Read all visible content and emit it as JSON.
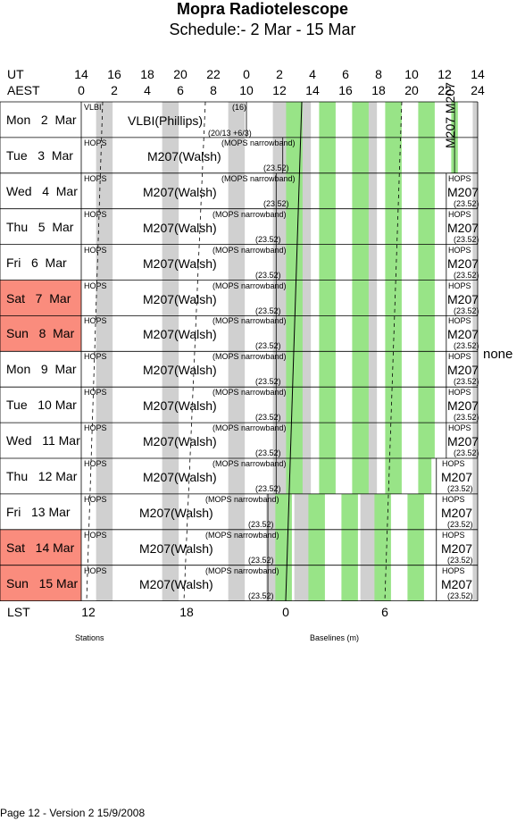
{
  "title": "Mopra Radiotelescope",
  "subtitle": "Schedule:- 2  Mar - 15 Mar",
  "rows": {
    "ut": "UT",
    "aest": "AEST",
    "lst": "LST"
  },
  "ut_ticks": [
    "14",
    "16",
    "18",
    "20",
    "22",
    "0",
    "2",
    "4",
    "6",
    "8",
    "10",
    "12",
    "14"
  ],
  "aest_ticks": [
    "0",
    "2",
    "4",
    "6",
    "8",
    "10",
    "12",
    "14",
    "16",
    "18",
    "20",
    "22",
    "24"
  ],
  "lst_ticks": [
    "12",
    "18",
    "0",
    "6"
  ],
  "days": [
    {
      "label": "Mon   2  Mar",
      "weekend": false
    },
    {
      "label": "Tue   3  Mar",
      "weekend": false
    },
    {
      "label": "Wed   4  Mar",
      "weekend": false
    },
    {
      "label": "Thu   5  Mar",
      "weekend": false
    },
    {
      "label": "Fri   6  Mar",
      "weekend": false
    },
    {
      "label": "Sat   7  Mar",
      "weekend": true
    },
    {
      "label": "Sun   8  Mar",
      "weekend": true
    },
    {
      "label": "Mon   9  Mar",
      "weekend": false
    },
    {
      "label": "Tue   10 Mar",
      "weekend": false
    },
    {
      "label": "Wed   11 Mar",
      "weekend": false
    },
    {
      "label": "Thu   12 Mar",
      "weekend": false
    },
    {
      "label": "Fri   13 Mar",
      "weekend": false
    },
    {
      "label": "Sat   14 Mar",
      "weekend": true
    },
    {
      "label": "Sun   15 Mar",
      "weekend": true
    }
  ],
  "blocks": {
    "vlbi_tag": "VLBI",
    "vlbi_main": "VLBI(Phillips)",
    "vlbi_16": "(16)",
    "vlbi_code": "(20/13 +6/3)",
    "hops": "HOPS",
    "main": "M207(Walsh)",
    "mops": "(MOPS narrowband)",
    "small": "(23.52)",
    "m207": "M207",
    "m207_rot": "M207 M207"
  },
  "config": "none",
  "footer": {
    "stations": "Stations",
    "baselines": "Baselines (m)",
    "page": "Page 12 - Version 2  15/9/2008"
  },
  "colors": {
    "weekend": "#fa8c7d",
    "green": "#98e487",
    "grey": "#d0d0d0"
  }
}
